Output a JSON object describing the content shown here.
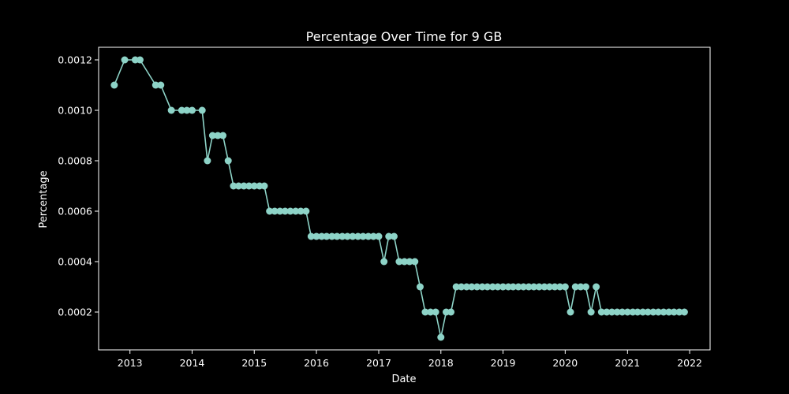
{
  "chart_data": {
    "type": "line",
    "title": "Percentage Over Time for 9 GB",
    "xlabel": "Date",
    "ylabel": "Percentage",
    "x_ticks": [
      "2013",
      "2014",
      "2015",
      "2016",
      "2017",
      "2018",
      "2019",
      "2020",
      "2021",
      "2022"
    ],
    "y_ticks": [
      "0.0002",
      "0.0004",
      "0.0006",
      "0.0008",
      "0.0010",
      "0.0012"
    ],
    "xlim": [
      "2012-07-01",
      "2022-05-01"
    ],
    "ylim": [
      5e-05,
      0.00125
    ],
    "grid": false,
    "legend": "none",
    "colors": {
      "series": "#8dd3c7",
      "background": "#000000",
      "foreground": "#ffffff"
    },
    "series": [
      {
        "marker": "circle",
        "x": [
          "2012-10-01",
          "2012-12-01",
          "2013-02-01",
          "2013-03-01",
          "2013-06-01",
          "2013-07-01",
          "2013-09-01",
          "2013-11-01",
          "2013-12-01",
          "2014-01-01",
          "2014-03-01",
          "2014-04-01",
          "2014-05-01",
          "2014-06-01",
          "2014-07-01",
          "2014-08-01",
          "2014-09-01",
          "2014-10-01",
          "2014-11-01",
          "2014-12-01",
          "2015-01-01",
          "2015-02-01",
          "2015-03-01",
          "2015-04-01",
          "2015-05-01",
          "2015-06-01",
          "2015-07-01",
          "2015-08-01",
          "2015-09-01",
          "2015-10-01",
          "2015-11-01",
          "2015-12-01",
          "2016-01-01",
          "2016-02-01",
          "2016-03-01",
          "2016-04-01",
          "2016-05-01",
          "2016-06-01",
          "2016-07-01",
          "2016-08-01",
          "2016-09-01",
          "2016-10-01",
          "2016-11-01",
          "2016-12-01",
          "2017-01-01",
          "2017-02-01",
          "2017-03-01",
          "2017-04-01",
          "2017-05-01",
          "2017-06-01",
          "2017-07-01",
          "2017-08-01",
          "2017-09-01",
          "2017-10-01",
          "2017-11-01",
          "2017-12-01",
          "2018-01-01",
          "2018-02-01",
          "2018-03-01",
          "2018-04-01",
          "2018-05-01",
          "2018-06-01",
          "2018-07-01",
          "2018-08-01",
          "2018-09-01",
          "2018-10-01",
          "2018-11-01",
          "2018-12-01",
          "2019-01-01",
          "2019-02-01",
          "2019-03-01",
          "2019-04-01",
          "2019-05-01",
          "2019-06-01",
          "2019-07-01",
          "2019-08-01",
          "2019-09-01",
          "2019-10-01",
          "2019-11-01",
          "2019-12-01",
          "2020-01-01",
          "2020-02-01",
          "2020-03-01",
          "2020-04-01",
          "2020-05-01",
          "2020-06-01",
          "2020-07-01",
          "2020-08-01",
          "2020-09-01",
          "2020-10-01",
          "2020-11-01",
          "2020-12-01",
          "2021-01-01",
          "2021-02-01",
          "2021-03-01",
          "2021-04-01",
          "2021-05-01",
          "2021-06-01",
          "2021-07-01",
          "2021-08-01",
          "2021-09-01",
          "2021-10-01",
          "2021-11-01",
          "2021-12-01"
        ],
        "y": [
          0.0011,
          0.0012,
          0.0012,
          0.0012,
          0.0011,
          0.0011,
          0.001,
          0.001,
          0.001,
          0.001,
          0.001,
          0.0008,
          0.0009,
          0.0009,
          0.0009,
          0.0008,
          0.0007,
          0.0007,
          0.0007,
          0.0007,
          0.0007,
          0.0007,
          0.0007,
          0.0006,
          0.0006,
          0.0006,
          0.0006,
          0.0006,
          0.0006,
          0.0006,
          0.0006,
          0.0005,
          0.0005,
          0.0005,
          0.0005,
          0.0005,
          0.0005,
          0.0005,
          0.0005,
          0.0005,
          0.0005,
          0.0005,
          0.0005,
          0.0005,
          0.0005,
          0.0004,
          0.0005,
          0.0005,
          0.0004,
          0.0004,
          0.0004,
          0.0004,
          0.0003,
          0.0002,
          0.0002,
          0.0002,
          0.0001,
          0.0002,
          0.0002,
          0.0003,
          0.0003,
          0.0003,
          0.0003,
          0.0003,
          0.0003,
          0.0003,
          0.0003,
          0.0003,
          0.0003,
          0.0003,
          0.0003,
          0.0003,
          0.0003,
          0.0003,
          0.0003,
          0.0003,
          0.0003,
          0.0003,
          0.0003,
          0.0003,
          0.0003,
          0.0002,
          0.0003,
          0.0003,
          0.0003,
          0.0002,
          0.0003,
          0.0002,
          0.0002,
          0.0002,
          0.0002,
          0.0002,
          0.0002,
          0.0002,
          0.0002,
          0.0002,
          0.0002,
          0.0002,
          0.0002,
          0.0002,
          0.0002,
          0.0002,
          0.0002,
          0.0002
        ]
      }
    ]
  }
}
